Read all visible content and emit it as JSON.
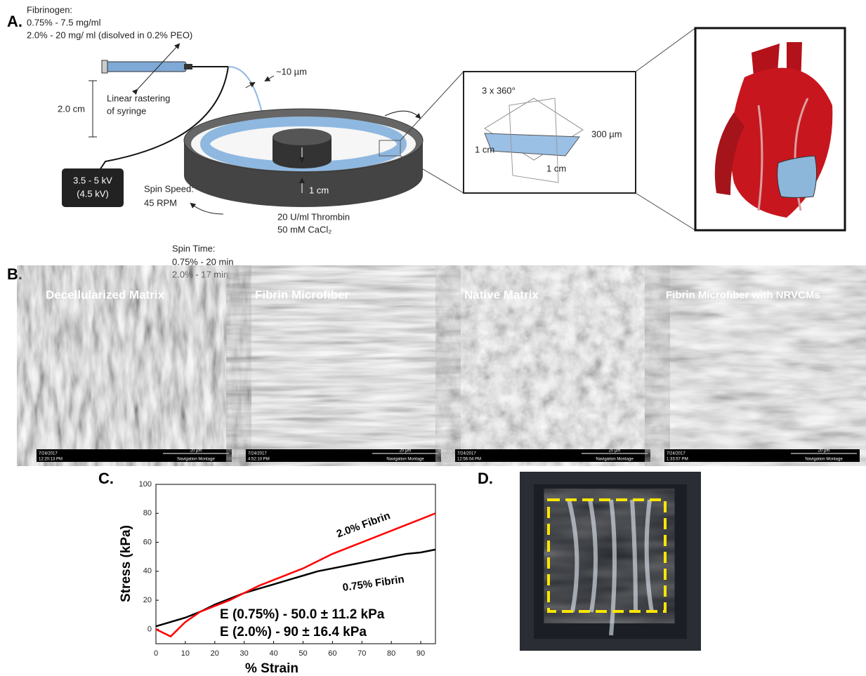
{
  "panel_labels": [
    "A.",
    "B.",
    "C.",
    "D."
  ],
  "panel_a": {
    "fibrinogen": [
      "Fibrinogen:",
      "0.75% - 7.5 mg/ml",
      "2.0% - 20 mg/ ml (disolved in 0.2% PEO)"
    ],
    "rastering": [
      "Linear rastering",
      "of syringe"
    ],
    "distance": "2.0 cm",
    "fiber_diameter": "~10 µm",
    "voltage": [
      "3.5 - 5 kV",
      "(4.5 kV)"
    ],
    "spin_speed": [
      "Spin Speed:",
      "45 RPM"
    ],
    "height": "1 cm",
    "bath": [
      "20 U/ml Thrombin",
      "50 mM CaCl₂"
    ],
    "spin_time": [
      "Spin Time:",
      "0.75% - 20 min",
      "2.0% - 17 min"
    ],
    "zoom": [
      "3 x 360°",
      "300 µm",
      "1 cm",
      "1 cm"
    ]
  },
  "panel_b": {
    "images": [
      {
        "title": "Decellularized Matrix",
        "date": "7/24/2017",
        "time": "12:20:13 PM"
      },
      {
        "title": "Fibrin Microfiber",
        "date": "7/24/2017",
        "time": "4:52:10 PM"
      },
      {
        "title": "Native Matrix",
        "date": "7/24/2017",
        "time": "12:56:04 PM"
      },
      {
        "title": "Fibrin Microfiber with NRVCMs",
        "date": "7/24/2017",
        "time": "1:33:57 PM"
      }
    ],
    "scale_bar": "20 µm",
    "mode": "Navigation Montage"
  },
  "chart_data": {
    "type": "line",
    "xlabel": "% Strain",
    "ylabel": "Stress (kPa)",
    "x": [
      0,
      5,
      10,
      15,
      20,
      25,
      30,
      35,
      40,
      45,
      50,
      55,
      60,
      65,
      70,
      75,
      80,
      85,
      90,
      95
    ],
    "series": [
      {
        "name": "0.75% Fibrin",
        "color": "#000000",
        "values": [
          2,
          5,
          8,
          12,
          17,
          21,
          25,
          28,
          31,
          34,
          37,
          40,
          42,
          44,
          46,
          48,
          50,
          52,
          53,
          55
        ]
      },
      {
        "name": "2.0% Fibrin",
        "color": "#ff0000",
        "values": [
          0,
          -5,
          5,
          12,
          16,
          20,
          25,
          30,
          34,
          38,
          42,
          47,
          52,
          56,
          60,
          64,
          68,
          72,
          76,
          80
        ]
      }
    ],
    "annotations": [
      "2.0% Fibrin",
      "0.75% Fibrin",
      "E (0.75%) - 50.0 ± 11.2 kPa",
      "E (2.0%)    - 90 ± 16.4 kPa"
    ],
    "xlim": [
      0,
      95
    ],
    "xticks": [
      0,
      10,
      20,
      30,
      40,
      50,
      60,
      70,
      80,
      90
    ],
    "ylim": [
      -10,
      100
    ],
    "yticks": [
      0,
      20,
      40,
      60,
      80,
      100
    ]
  }
}
